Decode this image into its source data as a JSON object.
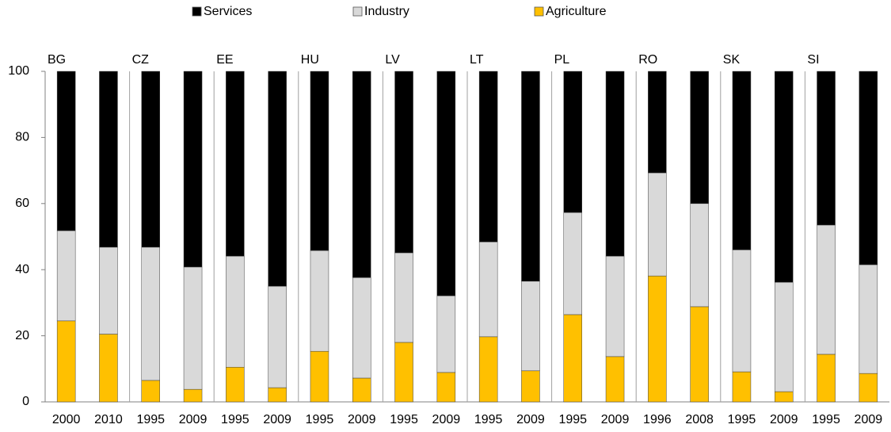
{
  "chart_data": {
    "type": "stacked-bar",
    "groups": [
      "BG",
      "CZ",
      "EE",
      "HU",
      "LV",
      "LT",
      "PL",
      "RO",
      "SK",
      "SI"
    ],
    "categories": [
      "2000",
      "2010",
      "1995",
      "2009",
      "1995",
      "2009",
      "1995",
      "2009",
      "1995",
      "2009",
      "1995",
      "2009",
      "1995",
      "2009",
      "1996",
      "2008",
      "1995",
      "2009",
      "1995",
      "2009"
    ],
    "series": [
      {
        "name": "Services",
        "color": "#000000",
        "values": [
          48.2,
          53.2,
          53.2,
          59.2,
          55.9,
          65.0,
          54.2,
          62.4,
          54.9,
          67.9,
          51.6,
          63.5,
          42.7,
          55.9,
          30.7,
          40.0,
          54.0,
          63.8,
          46.5,
          58.5
        ]
      },
      {
        "name": "Industry",
        "color": "#d9d9d9",
        "values": [
          27.3,
          26.3,
          40.3,
          37.0,
          33.6,
          30.7,
          30.5,
          30.4,
          27.1,
          23.2,
          28.7,
          27.1,
          30.9,
          30.4,
          31.2,
          31.2,
          36.9,
          33.1,
          39.1,
          32.9
        ]
      },
      {
        "name": "Agriculture",
        "color": "#ffc000",
        "values": [
          24.5,
          20.5,
          6.5,
          3.8,
          10.5,
          4.3,
          15.3,
          7.2,
          18.0,
          8.9,
          19.7,
          9.4,
          26.4,
          13.7,
          38.1,
          28.8,
          9.1,
          3.1,
          14.4,
          8.6
        ]
      }
    ],
    "ylim": [
      0,
      100
    ],
    "yticks": [
      0,
      20,
      40,
      60,
      80,
      100
    ],
    "legend": "top"
  }
}
